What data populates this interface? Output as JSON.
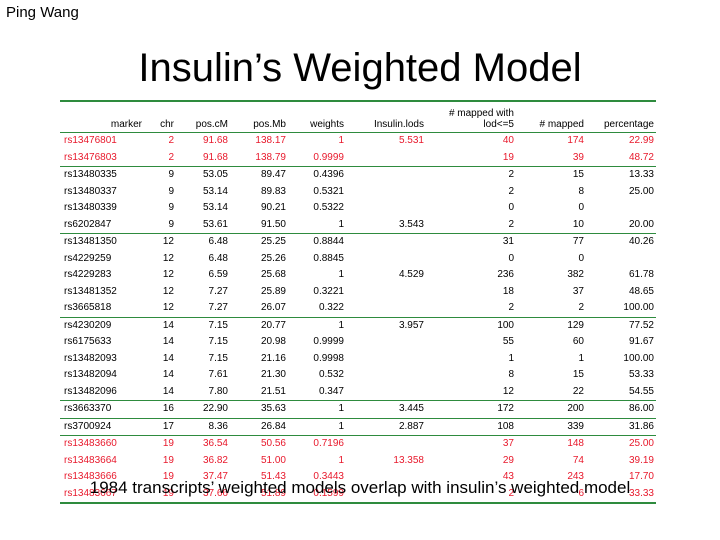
{
  "author": "Ping Wang",
  "title": "Insulin’s Weighted Model",
  "table": {
    "headers": [
      "marker",
      "chr",
      "pos.cM",
      "pos.Mb",
      "weights",
      "Insulin.lods",
      "# mapped with lod<=5",
      "# mapped",
      "percentage"
    ],
    "rows": [
      {
        "marker": "rs13476801",
        "chr": "2",
        "pos_cM": "91.68",
        "pos_Mb": "138.17",
        "weights": "1",
        "lods": "5.531",
        "mapped_lod": "40",
        "mapped": "174",
        "pct": "22.99",
        "highlight": true,
        "group_start": false
      },
      {
        "marker": "rs13476803",
        "chr": "2",
        "pos_cM": "91.68",
        "pos_Mb": "138.79",
        "weights": "0.9999",
        "lods": "",
        "mapped_lod": "19",
        "mapped": "39",
        "pct": "48.72",
        "highlight": true,
        "group_start": false
      },
      {
        "marker": "rs13480335",
        "chr": "9",
        "pos_cM": "53.05",
        "pos_Mb": "89.47",
        "weights": "0.4396",
        "lods": "",
        "mapped_lod": "2",
        "mapped": "15",
        "pct": "13.33",
        "highlight": false,
        "group_start": true
      },
      {
        "marker": "rs13480337",
        "chr": "9",
        "pos_cM": "53.14",
        "pos_Mb": "89.83",
        "weights": "0.5321",
        "lods": "",
        "mapped_lod": "2",
        "mapped": "8",
        "pct": "25.00",
        "highlight": false,
        "group_start": false
      },
      {
        "marker": "rs13480339",
        "chr": "9",
        "pos_cM": "53.14",
        "pos_Mb": "90.21",
        "weights": "0.5322",
        "lods": "",
        "mapped_lod": "0",
        "mapped": "0",
        "pct": "",
        "highlight": false,
        "group_start": false
      },
      {
        "marker": "rs6202847",
        "chr": "9",
        "pos_cM": "53.61",
        "pos_Mb": "91.50",
        "weights": "1",
        "lods": "3.543",
        "mapped_lod": "2",
        "mapped": "10",
        "pct": "20.00",
        "highlight": false,
        "group_start": false
      },
      {
        "marker": "rs13481350",
        "chr": "12",
        "pos_cM": "6.48",
        "pos_Mb": "25.25",
        "weights": "0.8844",
        "lods": "",
        "mapped_lod": "31",
        "mapped": "77",
        "pct": "40.26",
        "highlight": false,
        "group_start": true
      },
      {
        "marker": "rs4229259",
        "chr": "12",
        "pos_cM": "6.48",
        "pos_Mb": "25.26",
        "weights": "0.8845",
        "lods": "",
        "mapped_lod": "0",
        "mapped": "0",
        "pct": "",
        "highlight": false,
        "group_start": false
      },
      {
        "marker": "rs4229283",
        "chr": "12",
        "pos_cM": "6.59",
        "pos_Mb": "25.68",
        "weights": "1",
        "lods": "4.529",
        "mapped_lod": "236",
        "mapped": "382",
        "pct": "61.78",
        "highlight": false,
        "group_start": false
      },
      {
        "marker": "rs13481352",
        "chr": "12",
        "pos_cM": "7.27",
        "pos_Mb": "25.89",
        "weights": "0.3221",
        "lods": "",
        "mapped_lod": "18",
        "mapped": "37",
        "pct": "48.65",
        "highlight": false,
        "group_start": false
      },
      {
        "marker": "rs3665818",
        "chr": "12",
        "pos_cM": "7.27",
        "pos_Mb": "26.07",
        "weights": "0.322",
        "lods": "",
        "mapped_lod": "2",
        "mapped": "2",
        "pct": "100.00",
        "highlight": false,
        "group_start": false
      },
      {
        "marker": "rs4230209",
        "chr": "14",
        "pos_cM": "7.15",
        "pos_Mb": "20.77",
        "weights": "1",
        "lods": "3.957",
        "mapped_lod": "100",
        "mapped": "129",
        "pct": "77.52",
        "highlight": false,
        "group_start": true
      },
      {
        "marker": "rs6175633",
        "chr": "14",
        "pos_cM": "7.15",
        "pos_Mb": "20.98",
        "weights": "0.9999",
        "lods": "",
        "mapped_lod": "55",
        "mapped": "60",
        "pct": "91.67",
        "highlight": false,
        "group_start": false
      },
      {
        "marker": "rs13482093",
        "chr": "14",
        "pos_cM": "7.15",
        "pos_Mb": "21.16",
        "weights": "0.9998",
        "lods": "",
        "mapped_lod": "1",
        "mapped": "1",
        "pct": "100.00",
        "highlight": false,
        "group_start": false
      },
      {
        "marker": "rs13482094",
        "chr": "14",
        "pos_cM": "7.61",
        "pos_Mb": "21.30",
        "weights": "0.532",
        "lods": "",
        "mapped_lod": "8",
        "mapped": "15",
        "pct": "53.33",
        "highlight": false,
        "group_start": false
      },
      {
        "marker": "rs13482096",
        "chr": "14",
        "pos_cM": "7.80",
        "pos_Mb": "21.51",
        "weights": "0.347",
        "lods": "",
        "mapped_lod": "12",
        "mapped": "22",
        "pct": "54.55",
        "highlight": false,
        "group_start": false
      },
      {
        "marker": "rs3663370",
        "chr": "16",
        "pos_cM": "22.90",
        "pos_Mb": "35.63",
        "weights": "1",
        "lods": "3.445",
        "mapped_lod": "172",
        "mapped": "200",
        "pct": "86.00",
        "highlight": false,
        "group_start": true
      },
      {
        "marker": "rs3700924",
        "chr": "17",
        "pos_cM": "8.36",
        "pos_Mb": "26.84",
        "weights": "1",
        "lods": "2.887",
        "mapped_lod": "108",
        "mapped": "339",
        "pct": "31.86",
        "highlight": false,
        "group_start": true
      },
      {
        "marker": "rs13483660",
        "chr": "19",
        "pos_cM": "36.54",
        "pos_Mb": "50.56",
        "weights": "0.7196",
        "lods": "",
        "mapped_lod": "37",
        "mapped": "148",
        "pct": "25.00",
        "highlight": true,
        "group_start": true
      },
      {
        "marker": "rs13483664",
        "chr": "19",
        "pos_cM": "36.82",
        "pos_Mb": "51.00",
        "weights": "1",
        "lods": "13.358",
        "mapped_lod": "29",
        "mapped": "74",
        "pct": "39.19",
        "highlight": true,
        "group_start": false
      },
      {
        "marker": "rs13483666",
        "chr": "19",
        "pos_cM": "37.47",
        "pos_Mb": "51.43",
        "weights": "0.3443",
        "lods": "",
        "mapped_lod": "43",
        "mapped": "243",
        "pct": "17.70",
        "highlight": true,
        "group_start": false
      },
      {
        "marker": "rs13483667",
        "chr": "19",
        "pos_cM": "37.66",
        "pos_Mb": "51.89",
        "weights": "0.1599",
        "lods": "",
        "mapped_lod": "2",
        "mapped": "6",
        "pct": "33.33",
        "highlight": true,
        "group_start": false
      }
    ]
  },
  "footer": "1984 transcripts’ weighted models overlap with insulin’s weighted model",
  "colors": {
    "highlight_text": "#e8192c",
    "rule": "#2e8b3e"
  }
}
